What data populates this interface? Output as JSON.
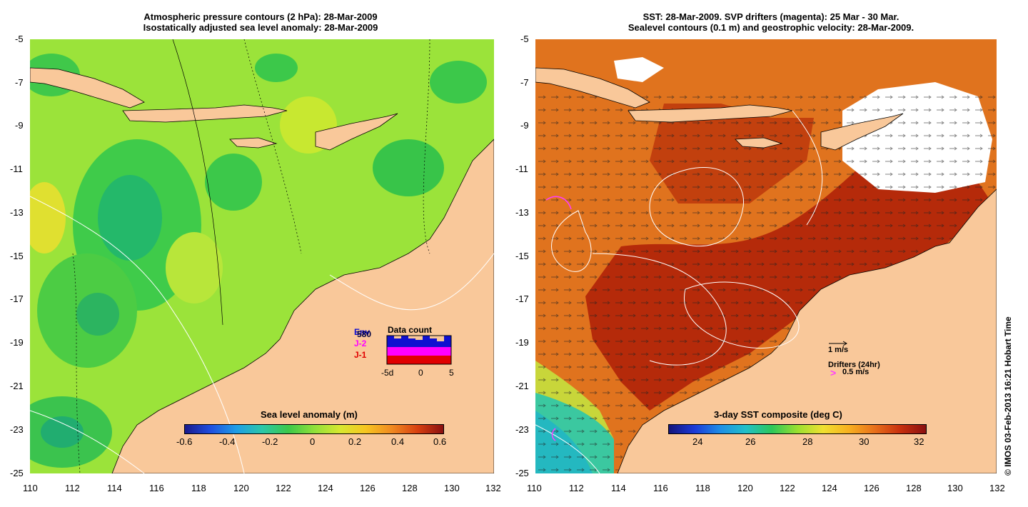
{
  "left_panel": {
    "title_line1": "Atmospheric pressure contours (2 hPa): 28-Mar-2009",
    "title_line2": "Isostatically adjusted sea level anomaly: 28-Mar-2009",
    "colorbar": {
      "title": "Sea level anomaly (m)",
      "ticks": [
        "-0.6",
        "-0.4",
        "-0.2",
        "0",
        "0.2",
        "0.4",
        "0.6"
      ]
    },
    "data_count": {
      "title": "Data count",
      "legend": [
        {
          "label": "Env",
          "color": "#1010d0"
        },
        {
          "label": "J-2",
          "color": "#ff00ff"
        },
        {
          "label": "J-1",
          "color": "#e00000"
        }
      ],
      "overlap_label": "580",
      "xticks": [
        "-5d",
        "0",
        "5"
      ]
    }
  },
  "right_panel": {
    "title_line1": "SST: 28-Mar-2009. SVP drifters (magenta): 25 Mar - 30 Mar.",
    "title_line2": "Sealevel contours (0.1 m) and geostrophic velocity: 28-Mar-2009.",
    "velocity_scale_label": "1 m/s",
    "drifters_label": "Drifters (24hr)",
    "drifter_speed_label": "0.5 m/s",
    "drifter_marker": ">",
    "colorbar": {
      "title": "3-day SST composite (deg C)",
      "ticks": [
        "24",
        "26",
        "28",
        "30",
        "32"
      ]
    }
  },
  "axes": {
    "y_ticks": [
      "-5",
      "-7",
      "-9",
      "-11",
      "-13",
      "-15",
      "-17",
      "-19",
      "-21",
      "-23",
      "-25"
    ],
    "x_ticks": [
      "110",
      "112",
      "114",
      "116",
      "118",
      "120",
      "122",
      "124",
      "126",
      "128",
      "130",
      "132"
    ]
  },
  "copyright": "© IMOS 03-Feb-2013 16:21 Hobart Time",
  "colors": {
    "land": "#f9c89a",
    "sla_green": "#8fe03a",
    "sst_red": "#b52a0a",
    "sst_orange": "#e0731e"
  }
}
